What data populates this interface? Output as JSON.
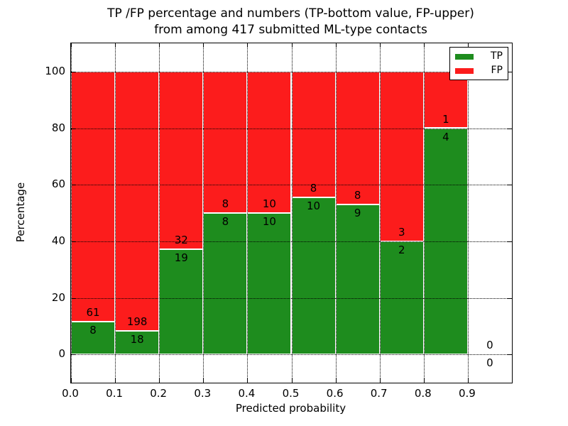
{
  "header": {
    "title_line1": "TP /FP percentage and numbers (TP-bottom value, FP-upper)",
    "title_line2": "from among 417 submitted ML-type contacts"
  },
  "legend": {
    "position": "upper right",
    "items": [
      {
        "label": "TP",
        "color": "#1e8c1e"
      },
      {
        "label": "FP",
        "color": "#fc1c1c"
      }
    ]
  },
  "chart_data": {
    "type": "bar",
    "stacked": true,
    "title": "TP /FP percentage and numbers (TP-bottom value, FP-upper) from among 417 submitted ML-type contacts",
    "xlabel": "Predicted probability",
    "ylabel": "Percentage",
    "total_contacts": 417,
    "bin_width": 0.1,
    "bin_starts": [
      0.0,
      0.1,
      0.2,
      0.3,
      0.4,
      0.5,
      0.6,
      0.7,
      0.8,
      0.9
    ],
    "series": [
      {
        "name": "TP",
        "color": "#1e8c1e",
        "counts": [
          8,
          18,
          19,
          8,
          10,
          10,
          9,
          2,
          4,
          0
        ],
        "percent": [
          11.59,
          8.33,
          37.25,
          50.0,
          50.0,
          55.56,
          52.94,
          40.0,
          80.0,
          0.0
        ]
      },
      {
        "name": "FP",
        "color": "#fc1c1c",
        "counts": [
          61,
          198,
          32,
          8,
          10,
          8,
          8,
          3,
          1,
          0
        ],
        "percent": [
          88.41,
          91.67,
          62.75,
          50.0,
          50.0,
          44.44,
          47.06,
          60.0,
          20.0,
          0.0
        ]
      }
    ],
    "annotation_note": "FP count printed just above the TP/FP boundary, TP count just below it; bin 0.9-1.0 shows 0 / 0 with no bar",
    "xlim": [
      0.0,
      1.0
    ],
    "ylim": [
      -10,
      110
    ],
    "x_tick_labels": [
      "0.0",
      "0.1",
      "0.2",
      "0.3",
      "0.4",
      "0.5",
      "0.6",
      "0.7",
      "0.8",
      "0.9"
    ],
    "x_tick_values": [
      0.0,
      0.1,
      0.2,
      0.3,
      0.4,
      0.5,
      0.6,
      0.7,
      0.8,
      0.9
    ],
    "y_ticks": [
      0,
      20,
      40,
      60,
      80,
      100
    ],
    "grid": true,
    "grid_style": "dotted"
  }
}
